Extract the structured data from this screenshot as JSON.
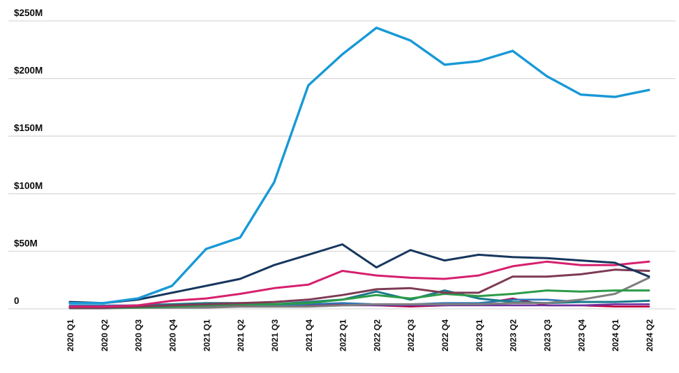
{
  "chart_data": {
    "type": "line",
    "title": "",
    "xlabel": "",
    "ylabel": "",
    "legend": "none",
    "grid": "horizontal",
    "ylim": [
      0,
      250
    ],
    "y_ticks": [
      {
        "value": 0,
        "label": "0"
      },
      {
        "value": 50,
        "label": "$50M"
      },
      {
        "value": 100,
        "label": "$100M"
      },
      {
        "value": 150,
        "label": "$150M"
      },
      {
        "value": 200,
        "label": "$200M"
      },
      {
        "value": 250,
        "label": "$250M"
      }
    ],
    "categories": [
      "2020 Q1",
      "2020 Q2",
      "2020 Q3",
      "2020 Q4",
      "2021 Q1",
      "2021 Q2",
      "2021 Q3",
      "2021 Q4",
      "2022 Q1",
      "2022 Q2",
      "2022 Q3",
      "2022 Q4",
      "2023 Q1",
      "2023 Q2",
      "2023 Q3",
      "2023 Q4",
      "2024 Q1",
      "2024 Q2"
    ],
    "value_unit": "M",
    "series": [
      {
        "name": "cyan",
        "color": "#1899D6",
        "width": 3.4,
        "values": [
          5,
          5,
          9,
          20,
          52,
          62,
          110,
          194,
          221,
          244,
          233,
          212,
          215,
          224,
          202,
          186,
          184,
          190
        ]
      },
      {
        "name": "navy",
        "color": "#17365D",
        "width": 3,
        "values": [
          6,
          5,
          8,
          14,
          20,
          26,
          38,
          47,
          56,
          36,
          51,
          42,
          47,
          45,
          44,
          42,
          40,
          28
        ]
      },
      {
        "name": "magenta",
        "color": "#D6206E",
        "width": 3,
        "values": [
          2,
          2,
          3,
          7,
          9,
          13,
          18,
          21,
          33,
          29,
          27,
          26,
          29,
          37,
          41,
          38,
          38,
          41
        ]
      },
      {
        "name": "plum",
        "color": "#7D3A55",
        "width": 3,
        "values": [
          1,
          1,
          2,
          3,
          4,
          5,
          6,
          8,
          12,
          17,
          18,
          14,
          14,
          28,
          28,
          30,
          34,
          33
        ]
      },
      {
        "name": "green",
        "color": "#2B9B48",
        "width": 3,
        "values": [
          1,
          1,
          1,
          2,
          3,
          4,
          4,
          5,
          8,
          12,
          9,
          13,
          11,
          13,
          16,
          15,
          16,
          16
        ]
      },
      {
        "name": "gray",
        "color": "#7F7F7F",
        "width": 3,
        "values": [
          0.5,
          0.5,
          1,
          1,
          1,
          2,
          2,
          2,
          3,
          4,
          4,
          4,
          4,
          5,
          5,
          8,
          13,
          27
        ]
      },
      {
        "name": "teal",
        "color": "#1B7A8C",
        "width": 3,
        "values": [
          2,
          2,
          3,
          4,
          5,
          5,
          4,
          6,
          8,
          15,
          8,
          16,
          9,
          6,
          5,
          6,
          6,
          7
        ]
      },
      {
        "name": "blue",
        "color": "#2E75B6",
        "width": 2.6,
        "values": [
          3,
          3,
          3,
          4,
          4,
          4,
          3,
          4,
          5,
          4,
          4,
          5,
          5,
          8,
          8,
          6,
          6,
          7
        ]
      },
      {
        "name": "purple",
        "color": "#7030A0",
        "width": 2.6,
        "values": [
          1,
          1,
          1,
          1,
          2,
          2,
          2,
          2,
          3,
          3,
          3,
          3,
          3,
          3,
          3,
          3,
          4,
          4
        ]
      },
      {
        "name": "crimson",
        "color": "#C00040",
        "width": 2.6,
        "values": [
          1,
          1,
          2,
          2,
          3,
          3,
          2,
          3,
          4,
          3,
          2,
          3,
          4,
          9,
          3,
          3,
          2,
          2
        ]
      }
    ]
  }
}
